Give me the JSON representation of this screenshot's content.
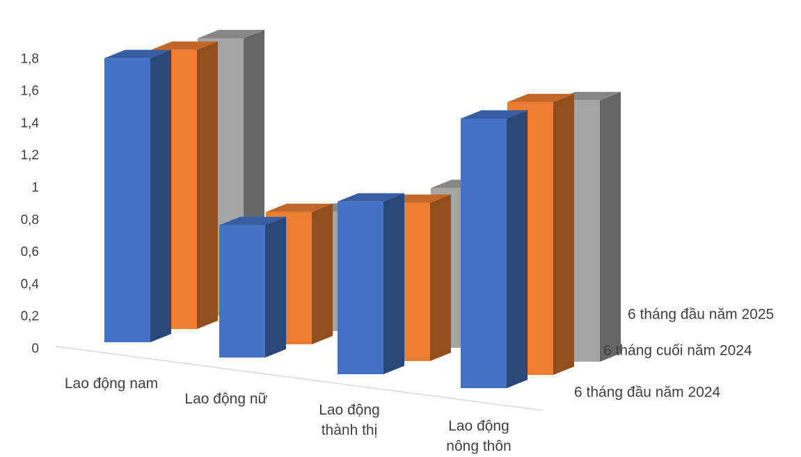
{
  "chart_data": {
    "type": "bar",
    "subtype": "3d-column",
    "categories": [
      "Lao động nam",
      "Lao động nữ",
      "Lao động\nthành thị",
      "Lao động\nnông thôn"
    ],
    "series": [
      {
        "name": "6 tháng đầu năm 2024",
        "values": [
          1.76,
          0.82,
          1.07,
          1.67
        ],
        "color": "#4472C4"
      },
      {
        "name": "6 tháng cuối năm 2024",
        "values": [
          1.73,
          0.82,
          0.98,
          1.69
        ],
        "color": "#ED7D31"
      },
      {
        "name": "6 tháng đầu năm 2025",
        "values": [
          1.72,
          0.74,
          0.99,
          1.62
        ],
        "color": "#A5A5A5"
      }
    ],
    "ylim": [
      0,
      1.8
    ],
    "yticks": [
      "0",
      "0,2",
      "0,4",
      "0,6",
      "0,8",
      "1",
      "1,2",
      "1,4",
      "1,6",
      "1,8"
    ],
    "grid": false,
    "legend": "series labels on depth axis (right)"
  }
}
